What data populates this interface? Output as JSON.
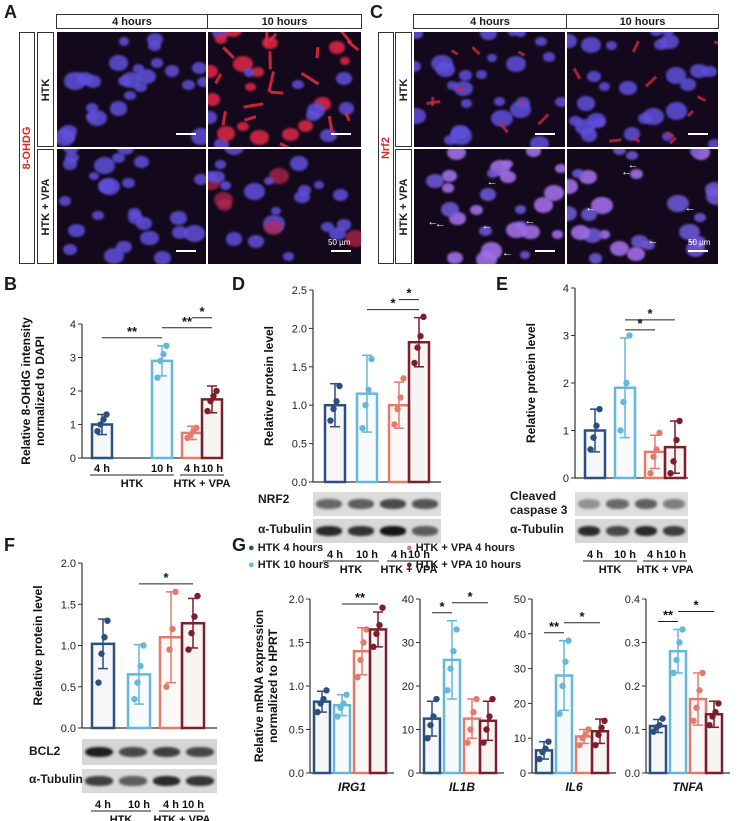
{
  "panels": {
    "A": "A",
    "B": "B",
    "C": "C",
    "D": "D",
    "E": "E",
    "F": "F",
    "G": "G"
  },
  "micro_A": {
    "col_headers": [
      "4 hours",
      "10 hours"
    ],
    "stain": "8-OHDG",
    "rows": [
      "HTK",
      "HTK + VPA"
    ],
    "scale": "50 µm"
  },
  "micro_C": {
    "col_headers": [
      "4 hours",
      "10 hours"
    ],
    "stain": "Nrf2",
    "rows": [
      "HTK",
      "HTK + VPA"
    ],
    "scale": "50 µm"
  },
  "colors": {
    "htk4": "#2b4f7e",
    "htk10": "#67b7d8",
    "vpa4": "#e17c6c",
    "vpa10": "#7c1e2b"
  },
  "bar_ticks": {
    "t4": "4 h",
    "t10": "10 h",
    "g1": "HTK",
    "g2": "HTK + VPA"
  },
  "blot_D": {
    "labels": [
      "NRF2",
      "α-Tubulin"
    ]
  },
  "blot_E": {
    "labels": [
      "Cleaved\ncaspase 3",
      "α-Tubulin"
    ]
  },
  "blot_F": {
    "labels": [
      "BCL2",
      "α-Tubulin"
    ]
  },
  "legend_G": [
    "HTK 4 hours",
    "HTK 10 hours",
    "HTK + VPA 4 hours",
    "HTK + VPA 10 hours"
  ],
  "chart_data": [
    {
      "id": "B",
      "type": "bar",
      "ylabel": "Relative 8-OHdG intensity\nnormalized to DAPI",
      "ylim": [
        0,
        4
      ],
      "yticks": [
        0,
        1,
        2,
        3,
        4
      ],
      "categories": [
        "4 h",
        "10 h",
        "4 h",
        "10 h"
      ],
      "groups": [
        "HTK",
        "HTK + VPA"
      ],
      "values": [
        1.0,
        2.9,
        0.75,
        1.75
      ],
      "errors": [
        0.3,
        0.45,
        0.2,
        0.4
      ],
      "points": [
        [
          0.8,
          1.0,
          1.15,
          1.3
        ],
        [
          2.4,
          2.9,
          3.1,
          3.35
        ],
        [
          0.6,
          0.7,
          0.8,
          0.9
        ],
        [
          1.4,
          1.7,
          1.85,
          2.0
        ]
      ],
      "sig": [
        {
          "a": 0,
          "b": 1,
          "label": "**"
        },
        {
          "a": 1,
          "b": 3,
          "label": "**"
        },
        {
          "a": 2,
          "b": 3,
          "label": "*"
        }
      ]
    },
    {
      "id": "D",
      "type": "bar",
      "ylabel": "Relative protein level",
      "ylim": [
        0,
        2.5
      ],
      "yticks": [
        0.0,
        0.5,
        1.0,
        1.5,
        2.0,
        2.5
      ],
      "categories": [
        "4 h",
        "10 h",
        "4 h",
        "10 h"
      ],
      "groups": [
        "HTK",
        "HTK + VPA"
      ],
      "values": [
        1.0,
        1.15,
        1.0,
        1.82
      ],
      "errors": [
        0.28,
        0.5,
        0.3,
        0.32
      ],
      "points": [
        [
          0.8,
          0.95,
          1.05,
          1.25
        ],
        [
          0.7,
          1.0,
          1.2,
          1.6
        ],
        [
          0.75,
          0.95,
          1.1,
          1.35
        ],
        [
          1.55,
          1.75,
          1.9,
          2.15
        ]
      ],
      "sig": [
        {
          "a": 1,
          "b": 3,
          "label": "*"
        },
        {
          "a": 2,
          "b": 3,
          "label": "*"
        }
      ]
    },
    {
      "id": "E",
      "type": "bar",
      "ylabel": "Relative protein level",
      "ylim": [
        0,
        4
      ],
      "yticks": [
        0,
        1,
        2,
        3,
        4
      ],
      "categories": [
        "4 h",
        "10 h",
        "4 h",
        "10 h"
      ],
      "groups": [
        "HTK",
        "HTK + VPA"
      ],
      "values": [
        1.0,
        1.9,
        0.55,
        0.65
      ],
      "errors": [
        0.45,
        1.05,
        0.35,
        0.55
      ],
      "points": [
        [
          0.6,
          0.85,
          1.1,
          1.45
        ],
        [
          1.0,
          1.6,
          2.0,
          3.0
        ],
        [
          0.1,
          0.45,
          0.6,
          0.95
        ],
        [
          0.1,
          0.35,
          0.8,
          1.2
        ]
      ],
      "sig": [
        {
          "a": 1,
          "b": 2,
          "label": "*"
        },
        {
          "a": 1,
          "b": 3,
          "label": "*"
        }
      ]
    },
    {
      "id": "F",
      "type": "bar",
      "ylabel": "Relative protein level",
      "ylim": [
        0,
        2.0
      ],
      "yticks": [
        0.0,
        0.5,
        1.0,
        1.5,
        2.0
      ],
      "categories": [
        "4 h",
        "10 h",
        "4 h",
        "10 h"
      ],
      "groups": [
        "HTK",
        "HTK + VPA"
      ],
      "values": [
        1.02,
        0.65,
        1.1,
        1.27
      ],
      "errors": [
        0.3,
        0.36,
        0.55,
        0.3
      ],
      "points": [
        [
          0.55,
          0.9,
          1.1,
          1.3
        ],
        [
          0.35,
          0.55,
          0.75,
          1.0
        ],
        [
          0.5,
          0.95,
          1.2,
          1.65
        ],
        [
          0.95,
          1.15,
          1.35,
          1.6
        ]
      ],
      "sig": [
        {
          "a": 1,
          "b": 3,
          "label": "*"
        }
      ]
    },
    {
      "id": "G1",
      "type": "bar",
      "gene": "IRG1",
      "ylabel": "Relative mRNA expression\nnormalized to HPRT",
      "ylim": [
        0,
        2.0
      ],
      "yticks": [
        0.0,
        0.5,
        1.0,
        1.5,
        2.0
      ],
      "values": [
        0.82,
        0.78,
        1.4,
        1.65
      ],
      "errors": [
        0.12,
        0.12,
        0.27,
        0.2
      ],
      "points": [
        [
          0.7,
          0.8,
          0.85,
          0.95
        ],
        [
          0.65,
          0.75,
          0.8,
          0.9
        ],
        [
          1.1,
          1.3,
          1.5,
          1.65
        ],
        [
          1.45,
          1.6,
          1.7,
          1.9
        ]
      ],
      "sig": [
        {
          "a": 1,
          "b": 3,
          "label": "**"
        }
      ]
    },
    {
      "id": "G2",
      "type": "bar",
      "gene": "IL1B",
      "ylim": [
        0,
        40
      ],
      "yticks": [
        0,
        10,
        20,
        30,
        40
      ],
      "values": [
        12.5,
        26.0,
        12.5,
        12.0
      ],
      "errors": [
        4.0,
        9.0,
        4.5,
        4.5
      ],
      "points": [
        [
          8,
          11,
          13,
          17
        ],
        [
          19,
          24,
          28,
          33
        ],
        [
          7,
          10,
          14,
          17
        ],
        [
          7,
          10,
          13,
          17
        ]
      ],
      "sig": [
        {
          "a": 0,
          "b": 1,
          "label": "*"
        },
        {
          "a": 1,
          "b": 3,
          "label": "*"
        }
      ]
    },
    {
      "id": "G3",
      "type": "bar",
      "gene": "IL6",
      "ylim": [
        0,
        50
      ],
      "yticks": [
        0,
        10,
        20,
        30,
        40,
        50
      ],
      "values": [
        6.5,
        28.0,
        10.5,
        12.0
      ],
      "errors": [
        2.5,
        10.0,
        2.0,
        3.5
      ],
      "points": [
        [
          4,
          6,
          7,
          9
        ],
        [
          17,
          25,
          32,
          38
        ],
        [
          8,
          10,
          11,
          12.5
        ],
        [
          8,
          11,
          13,
          15
        ]
      ],
      "sig": [
        {
          "a": 0,
          "b": 1,
          "label": "**"
        },
        {
          "a": 1,
          "b": 3,
          "label": "*"
        }
      ]
    },
    {
      "id": "G4",
      "type": "bar",
      "gene": "TNFA",
      "ylim": [
        0,
        0.4
      ],
      "yticks": [
        0.0,
        0.1,
        0.2,
        0.3,
        0.4
      ],
      "values": [
        0.108,
        0.28,
        0.17,
        0.135
      ],
      "errors": [
        0.015,
        0.05,
        0.06,
        0.03
      ],
      "points": [
        [
          0.095,
          0.105,
          0.11,
          0.125
        ],
        [
          0.23,
          0.26,
          0.3,
          0.33
        ],
        [
          0.12,
          0.15,
          0.19,
          0.23
        ],
        [
          0.11,
          0.13,
          0.14,
          0.16
        ]
      ],
      "sig": [
        {
          "a": 0,
          "b": 1,
          "label": "**"
        },
        {
          "a": 1,
          "b": 3,
          "label": "*"
        }
      ]
    }
  ]
}
